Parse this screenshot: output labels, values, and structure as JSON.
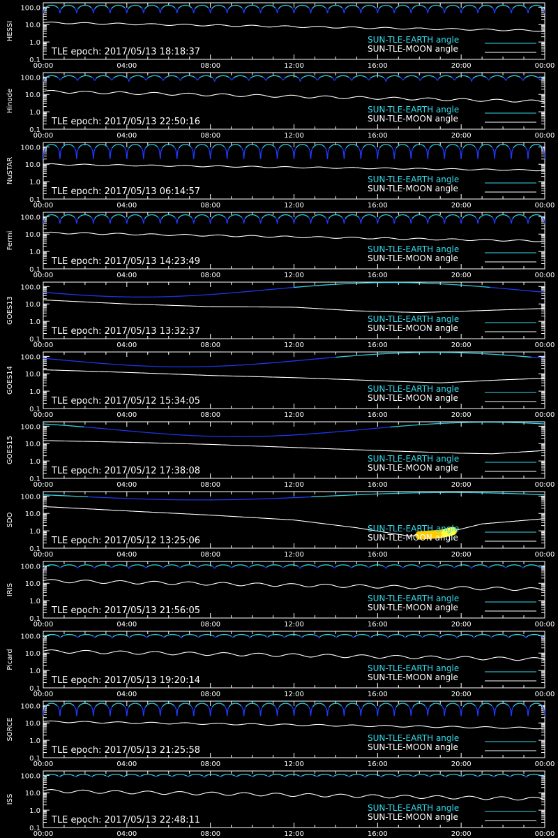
{
  "colors": {
    "background": "#000000",
    "axis": "#ffffff",
    "earth_high": "#33ddee",
    "earth_low": "#1f3bff",
    "moon": "#ffffff"
  },
  "legend": {
    "earth_label": "SUN-TLE-EARTH angle",
    "moon_label": "SUN-TLE-MOON angle"
  },
  "chart_data": {
    "type": "line",
    "x_ticks": [
      "00:00",
      "04:00",
      "08:00",
      "12:00",
      "16:00",
      "20:00",
      "00:00"
    ],
    "y_ticks": [
      "100.0",
      "10.0",
      "1.0",
      "0.1"
    ],
    "y_scale": "log",
    "ylim": [
      0.1,
      180
    ],
    "xlim_hours": [
      0,
      24
    ],
    "panels": [
      {
        "name": "HESSI",
        "epoch": "TLE epoch: 2017/05/13 18:18:37",
        "earth": {
          "kind": "leo",
          "period_h": 1.6,
          "max": 130,
          "min": 45
        },
        "moon": {
          "start": 13,
          "end": 4.5,
          "wiggle": 0.05,
          "period_h": 1.6
        }
      },
      {
        "name": "Hinode",
        "epoch": "TLE epoch: 2017/05/13 22:50:16",
        "earth": {
          "kind": "leo",
          "period_h": 1.64,
          "max": 120,
          "min": 55
        },
        "moon": {
          "start": 15,
          "end": 4.0,
          "wiggle": 0.08,
          "period_h": 1.64
        }
      },
      {
        "name": "NuSTAR",
        "epoch": "TLE epoch: 2017/05/13 06:14:57",
        "earth": {
          "kind": "leo",
          "period_h": 1.6,
          "max": 140,
          "min": 20
        },
        "moon": {
          "start": 10,
          "end": 4.5,
          "wiggle": 0.04,
          "period_h": 1.6
        }
      },
      {
        "name": "Fermi",
        "epoch": "TLE epoch: 2017/05/13 14:23:49",
        "earth": {
          "kind": "leo",
          "period_h": 1.6,
          "max": 130,
          "min": 40
        },
        "moon": {
          "start": 12,
          "end": 4.0,
          "wiggle": 0.05,
          "period_h": 1.6
        }
      },
      {
        "name": "GOES13",
        "epoch": "TLE epoch: 2017/05/13 13:32:37",
        "earth": {
          "kind": "geo",
          "max": 170,
          "min": 25,
          "min_hour": 4.7,
          "start": 70
        },
        "moon": {
          "points": [
            [
              0,
              17
            ],
            [
              4,
              10
            ],
            [
              8,
              7
            ],
            [
              12,
              6.5
            ],
            [
              15,
              4
            ],
            [
              18,
              3.2
            ],
            [
              20,
              3.8
            ],
            [
              24,
              5.5
            ]
          ]
        }
      },
      {
        "name": "GOES14",
        "epoch": "TLE epoch: 2017/05/12 15:34:05",
        "earth": {
          "kind": "geo",
          "max": 170,
          "min": 25,
          "min_hour": 6.7,
          "start": 100
        },
        "moon": {
          "points": [
            [
              0,
              17
            ],
            [
              4,
              12
            ],
            [
              8,
              8
            ],
            [
              12,
              6
            ],
            [
              16,
              4
            ],
            [
              19,
              3.0
            ],
            [
              22,
              4.5
            ],
            [
              24,
              5.5
            ]
          ]
        }
      },
      {
        "name": "GOES15",
        "epoch": "TLE epoch: 2017/05/12 17:38:08",
        "earth": {
          "kind": "geo",
          "max": 170,
          "min": 25,
          "min_hour": 9.3,
          "start": 150
        },
        "moon": {
          "points": [
            [
              0,
              15
            ],
            [
              4,
              12
            ],
            [
              8,
              9
            ],
            [
              12,
              6
            ],
            [
              16,
              4
            ],
            [
              20,
              2.8
            ],
            [
              21.5,
              2.6
            ],
            [
              24,
              4
            ]
          ]
        }
      },
      {
        "name": "SDO",
        "epoch": "TLE epoch: 2017/05/12 13:25:06",
        "earth": {
          "kind": "geo",
          "max": 160,
          "min": 60,
          "min_hour": 7.5,
          "start": 100
        },
        "moon": {
          "points": [
            [
              0,
              25
            ],
            [
              4,
              14
            ],
            [
              8,
              8
            ],
            [
              12,
              4.2
            ],
            [
              15,
              1.5
            ],
            [
              17.5,
              0.5
            ],
            [
              19,
              0.65
            ],
            [
              21,
              2.5
            ],
            [
              24,
              5
            ]
          ]
        },
        "eclipse_hours": [
          18.0,
          19.6
        ]
      },
      {
        "name": "IRIS",
        "epoch": "TLE epoch: 2017/05/13 21:56:05",
        "earth": {
          "kind": "leo",
          "period_h": 1.64,
          "max": 115,
          "min": 70
        },
        "moon": {
          "start": 14,
          "end": 4.5,
          "wiggle": 0.1,
          "period_h": 1.64
        }
      },
      {
        "name": "Picard",
        "epoch": "TLE epoch: 2017/05/13 19:20:14",
        "earth": {
          "kind": "leo",
          "period_h": 1.65,
          "max": 118,
          "min": 72
        },
        "moon": {
          "start": 13,
          "end": 4.5,
          "wiggle": 0.1,
          "period_h": 1.65
        }
      },
      {
        "name": "SORCE",
        "epoch": "TLE epoch: 2017/05/13 21:25:58",
        "earth": {
          "kind": "leo",
          "period_h": 1.6,
          "max": 135,
          "min": 25
        },
        "moon": {
          "start": 12,
          "end": 5.0,
          "wiggle": 0.05,
          "period_h": 1.6
        }
      },
      {
        "name": "ISS",
        "epoch": "TLE epoch: 2017/05/13 22:48:11",
        "earth": {
          "kind": "leo",
          "period_h": 1.54,
          "max": 115,
          "min": 75
        },
        "moon": {
          "start": 13,
          "end": 4.5,
          "wiggle": 0.1,
          "period_h": 1.54
        }
      }
    ]
  }
}
